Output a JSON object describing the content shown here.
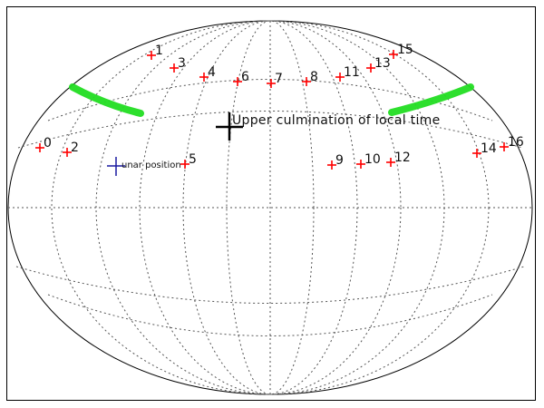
{
  "projection": "aitoff-style all-sky map",
  "colors": {
    "frame": "#000000",
    "grid": "#555555",
    "marker": "#ff0000",
    "zenith": "#000000",
    "moon": "#1a1aa0",
    "band": "#22dd22"
  },
  "annotations": {
    "zenith_label": "Upper culmination of local time",
    "moon_label": "unar position"
  },
  "markers": [
    {
      "id": "0",
      "label": "0"
    },
    {
      "id": "1",
      "label": "1"
    },
    {
      "id": "2",
      "label": "2"
    },
    {
      "id": "3",
      "label": "3"
    },
    {
      "id": "4",
      "label": "4"
    },
    {
      "id": "5",
      "label": "5"
    },
    {
      "id": "6",
      "label": "6"
    },
    {
      "id": "7",
      "label": "7"
    },
    {
      "id": "8",
      "label": "8"
    },
    {
      "id": "9",
      "label": "9"
    },
    {
      "id": "10",
      "label": "10"
    },
    {
      "id": "11",
      "label": "11"
    },
    {
      "id": "12",
      "label": "12"
    },
    {
      "id": "13",
      "label": "13"
    },
    {
      "id": "14",
      "label": "14"
    },
    {
      "id": "15",
      "label": "15"
    },
    {
      "id": "16",
      "label": "16"
    }
  ]
}
